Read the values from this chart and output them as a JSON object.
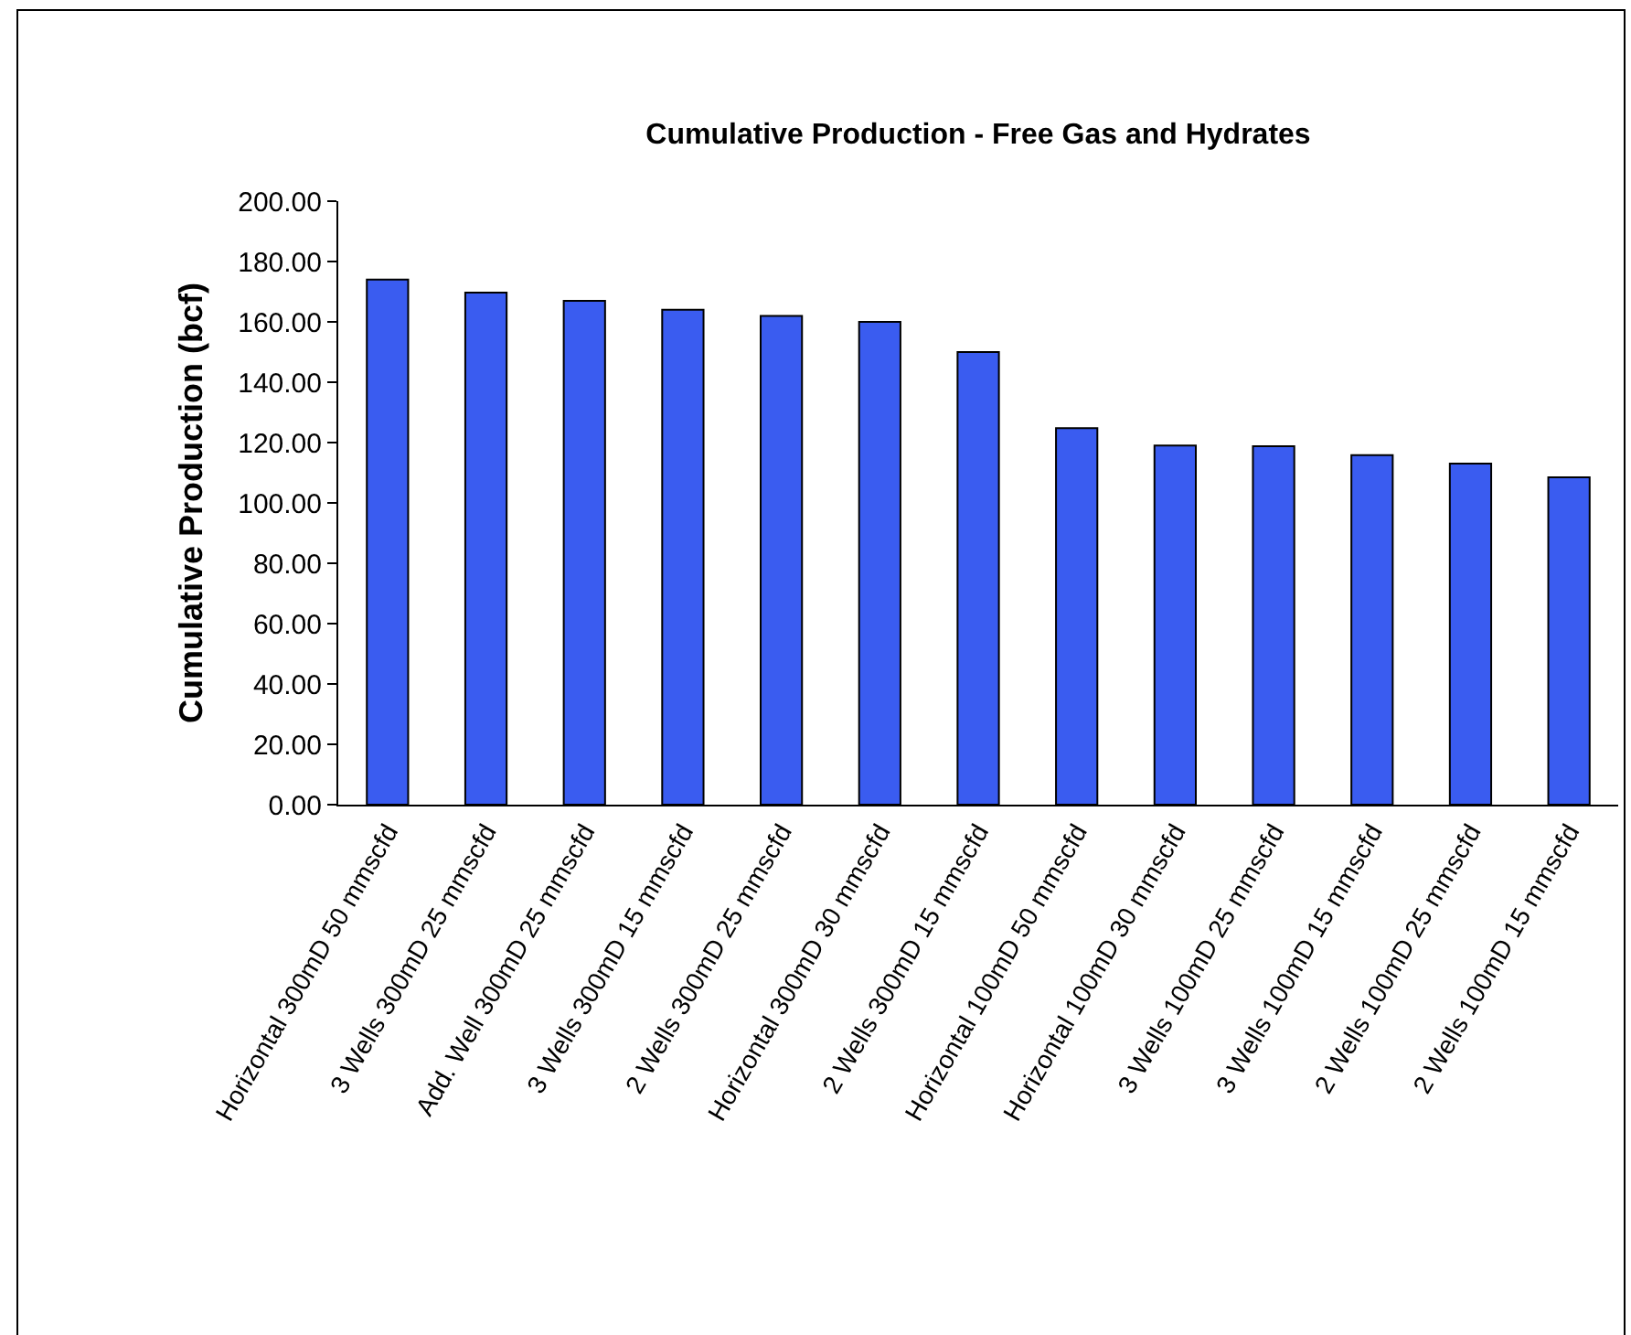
{
  "chart_data": {
    "type": "bar",
    "title": "Cumulative Production - Free Gas and Hydrates",
    "ylabel": "Cumulative Production (bcf)",
    "categories": [
      "Horizontal 300mD 50 mmscfd",
      "3 Wells 300mD 25 mmscfd",
      "Add. Well 300mD 25 mmscfd",
      "3 Wells 300mD 15 mmscfd",
      "2 Wells 300mD 25 mmscfd",
      "Horizontal 300mD 30 mmscfd",
      "2 Wells 300mD 15 mmscfd",
      "Horizontal 100mD 50 mmscfd",
      "Horizontal 100mD 30 mmscfd",
      "3 Wells 100mD 25 mmscfd",
      "3 Wells 100mD 15 mmscfd",
      "2 Wells 100mD 25 mmscfd",
      "2 Wells 100mD 15 mmscfd"
    ],
    "values": [
      174,
      169.7,
      167,
      164,
      162,
      160,
      150,
      124.8,
      119,
      118.8,
      115.8,
      113,
      108.5
    ],
    "color": "#3a5cf0",
    "ylim": [
      0,
      200
    ],
    "yticks": [
      {
        "value": 0,
        "label": "0.00"
      },
      {
        "value": 20,
        "label": "20.00"
      },
      {
        "value": 40,
        "label": "40.00"
      },
      {
        "value": 60,
        "label": "60.00"
      },
      {
        "value": 80,
        "label": "80.00"
      },
      {
        "value": 100,
        "label": "100.00"
      },
      {
        "value": 120,
        "label": "120.00"
      },
      {
        "value": 140,
        "label": "140.00"
      },
      {
        "value": 160,
        "label": "160.00"
      },
      {
        "value": 180,
        "label": "180.00"
      },
      {
        "value": 200,
        "label": "200.00"
      }
    ],
    "grid": false,
    "legend": false
  }
}
